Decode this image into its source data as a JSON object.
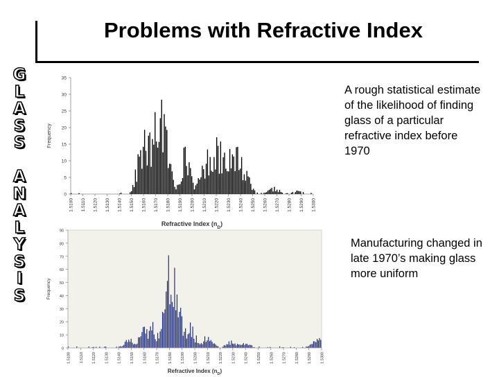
{
  "slide": {
    "title": "Problems with Refractive Index",
    "side_word": [
      "G",
      "L",
      "A",
      "S",
      "S",
      " ",
      "A",
      "N",
      "A",
      "L",
      "Y",
      "S",
      "I",
      "S"
    ],
    "note_top": "A rough statistical estimate of the likelihood of finding glass of a particular refractive index before 1970",
    "note_bottom": "Manufacturing changed in late 1970’s making glass more uniform"
  },
  "chart_data": [
    {
      "type": "bar",
      "title": "",
      "xlabel": "Refractive Index (n",
      "xlabel_sub": "D",
      "xlabel_suffix": ")",
      "ylabel": "Frequency",
      "ylim": [
        0,
        35
      ],
      "yticks": [
        0,
        5,
        10,
        15,
        20,
        25,
        30,
        35
      ],
      "xlim": [
        1.51,
        1.53
      ],
      "xticks": [
        "1.5100",
        "1.5110",
        "1.5120",
        "1.5130",
        "1.5140",
        "1.5150",
        "1.5160",
        "1.5170",
        "1.5180",
        "1.5190",
        "1.5200",
        "1.5210",
        "1.5220",
        "1.5230",
        "1.5240",
        "1.5250",
        "1.5260",
        "1.5270",
        "1.5280",
        "1.5290",
        "1.5300"
      ],
      "bar_color": "#000000",
      "background": "#ffffff",
      "peaks": [
        {
          "x": 1.5174,
          "height": 33
        },
        {
          "x": 1.5175,
          "height": 30
        },
        {
          "x": 1.5172,
          "height": 26
        },
        {
          "x": 1.5163,
          "height": 19
        },
        {
          "x": 1.516,
          "height": 19
        },
        {
          "x": 1.5166,
          "height": 18
        },
        {
          "x": 1.5178,
          "height": 17
        },
        {
          "x": 1.5195,
          "height": 14
        },
        {
          "x": 1.5212,
          "height": 13
        },
        {
          "x": 1.522,
          "height": 19
        },
        {
          "x": 1.5229,
          "height": 18
        },
        {
          "x": 1.5224,
          "height": 16
        },
        {
          "x": 1.5238,
          "height": 15
        },
        {
          "x": 1.5244,
          "height": 8
        },
        {
          "x": 1.5268,
          "height": 2
        },
        {
          "x": 1.5287,
          "height": 1
        }
      ]
    },
    {
      "type": "bar",
      "title": "",
      "xlabel": "Refractive Index (n",
      "xlabel_sub": "D",
      "xlabel_suffix": ")",
      "ylabel": "Frequency",
      "ylim": [
        0,
        90
      ],
      "yticks": [
        0,
        10,
        20,
        30,
        40,
        50,
        60,
        70,
        80,
        90
      ],
      "xlim": [
        1.51,
        1.53
      ],
      "xticks": [
        "1.5100",
        "1.5110",
        "1.5120",
        "1.5130",
        "1.5140",
        "1.5150",
        "1.5160",
        "1.5170",
        "1.5180",
        "1.5190",
        "1.5200",
        "1.5210",
        "1.5220",
        "1.5230",
        "1.5240",
        "1.5250",
        "1.5260",
        "1.5270",
        "1.5280",
        "1.5290",
        "1.5300"
      ],
      "bar_color": "#1c2a78",
      "background": "#f3f2ea",
      "peaks": [
        {
          "x": 1.5182,
          "height": 76
        },
        {
          "x": 1.5183,
          "height": 58
        },
        {
          "x": 1.518,
          "height": 50
        },
        {
          "x": 1.5185,
          "height": 45
        },
        {
          "x": 1.5178,
          "height": 40
        },
        {
          "x": 1.5176,
          "height": 30
        },
        {
          "x": 1.5187,
          "height": 28
        },
        {
          "x": 1.5166,
          "height": 20
        },
        {
          "x": 1.5196,
          "height": 18
        },
        {
          "x": 1.516,
          "height": 15
        },
        {
          "x": 1.521,
          "height": 10
        },
        {
          "x": 1.515,
          "height": 8
        },
        {
          "x": 1.523,
          "height": 6
        },
        {
          "x": 1.524,
          "height": 4
        },
        {
          "x": 1.5298,
          "height": 8
        }
      ]
    }
  ]
}
